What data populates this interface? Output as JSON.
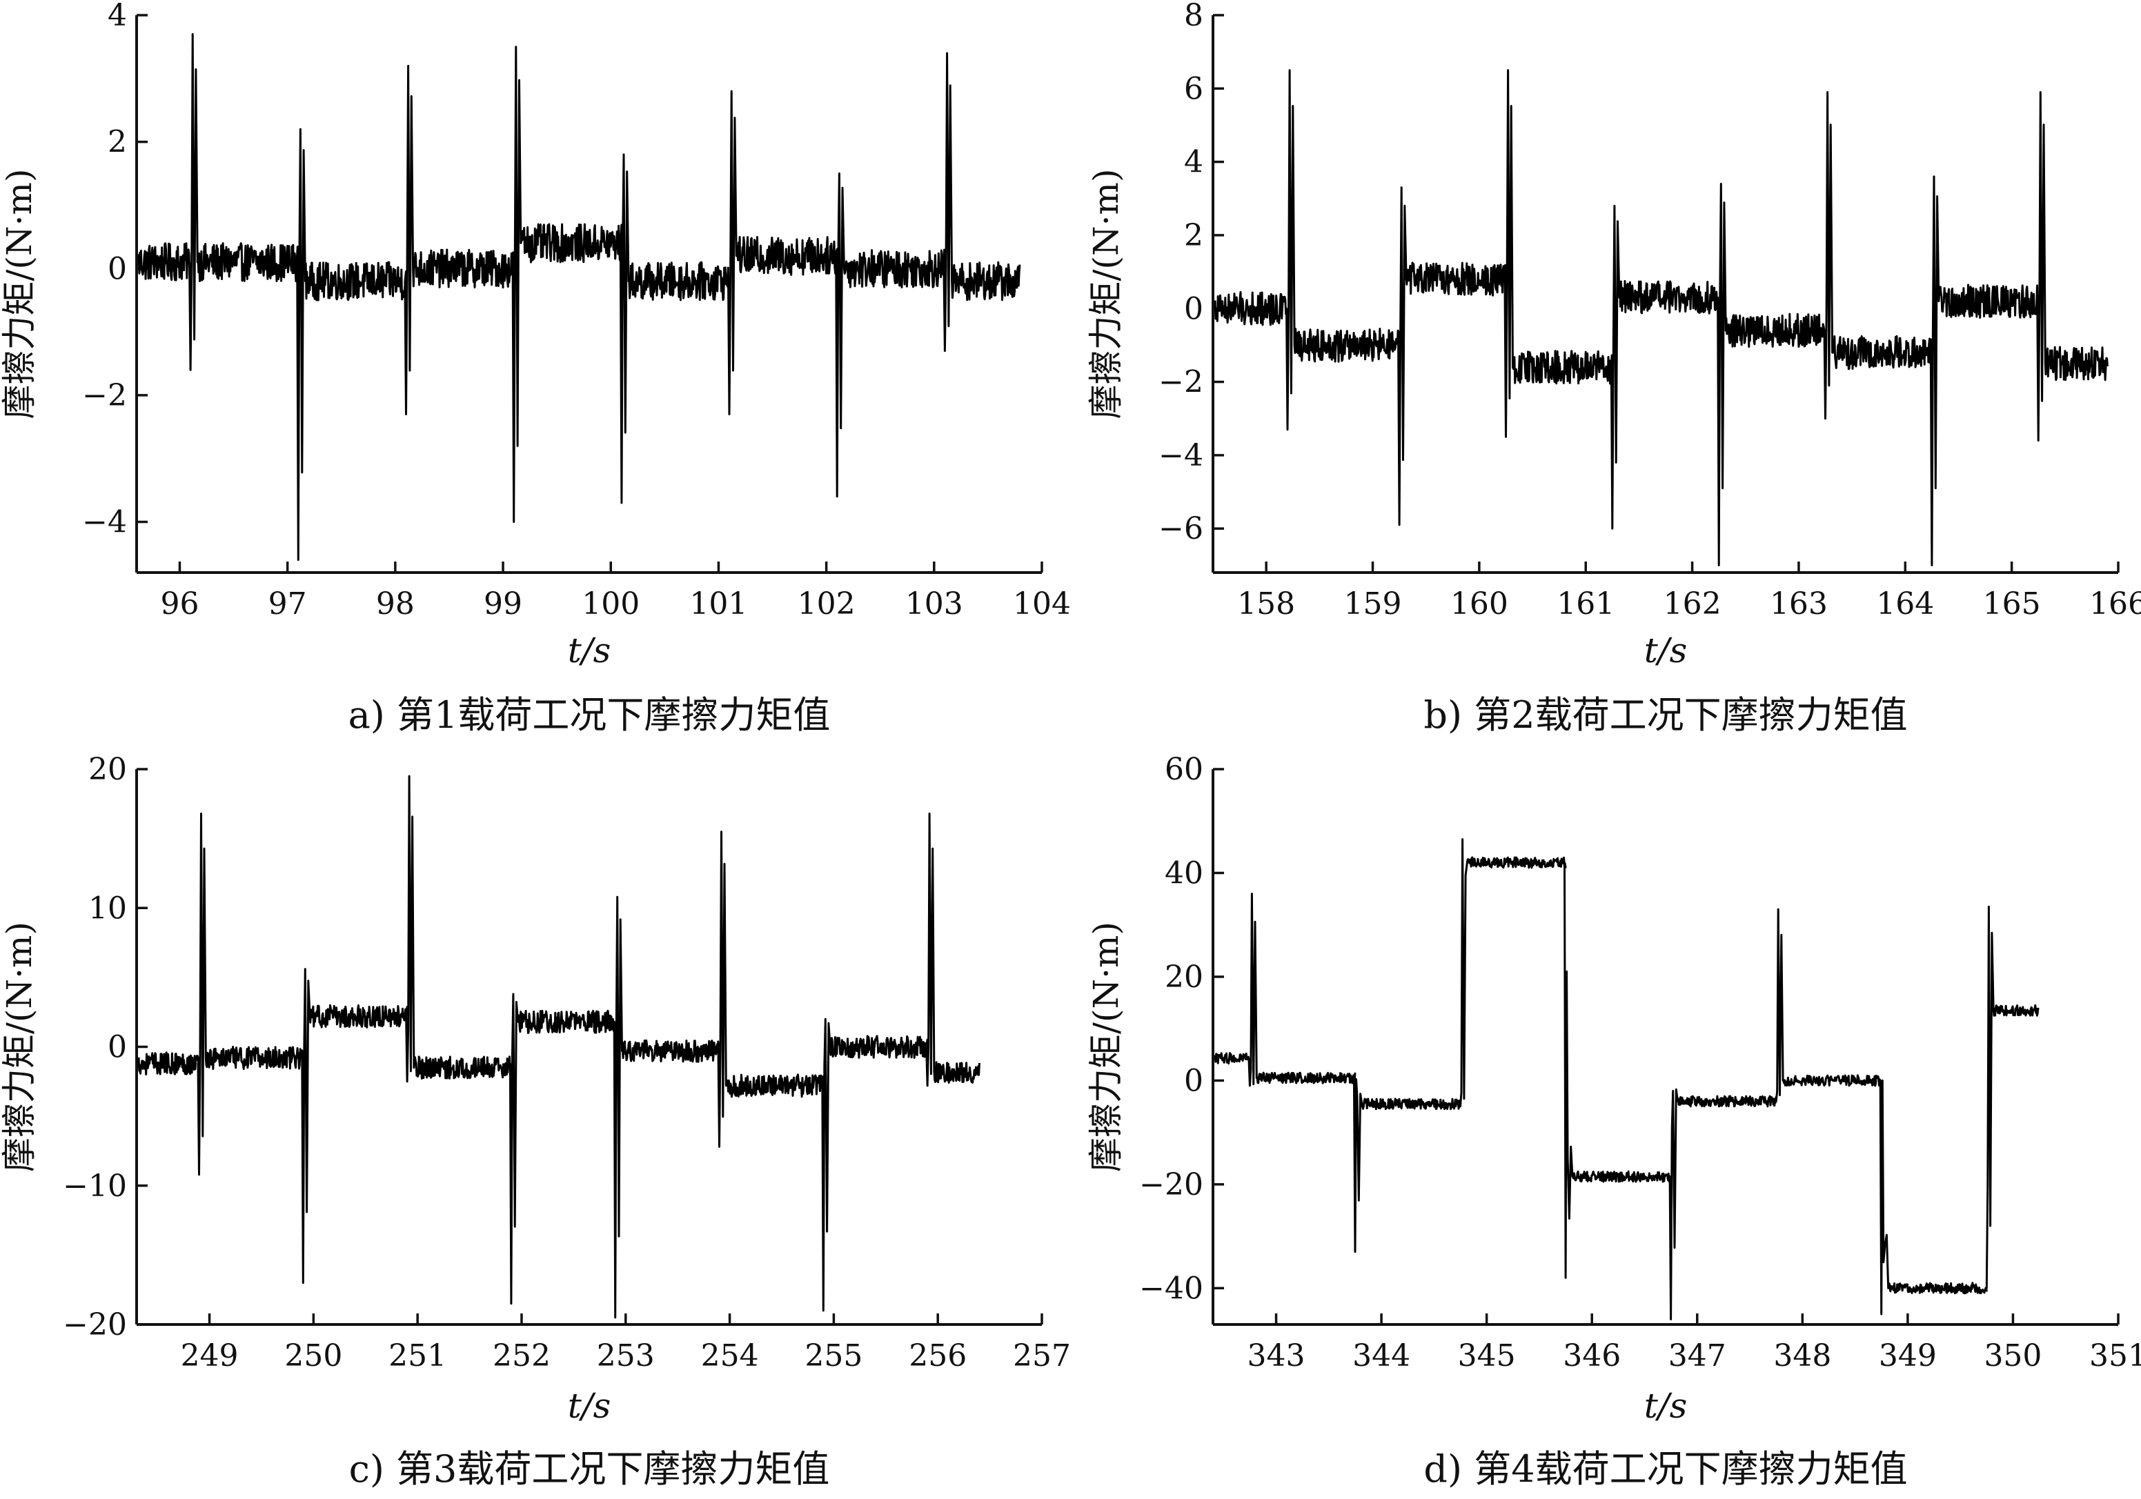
{
  "chart_data": [
    {
      "type": "line",
      "caption": "a) 第1载荷工况下摩擦力矩值",
      "xlabel": "t/s",
      "ylabel": "摩擦力矩/(N·m)",
      "xlim": [
        95.6,
        104
      ],
      "ylim": [
        -4.8,
        4
      ],
      "xticks": [
        96,
        97,
        98,
        99,
        100,
        101,
        102,
        103,
        104
      ],
      "yticks": [
        -4,
        -2,
        0,
        2,
        4
      ],
      "ytick_labels": [
        "−4",
        "−2",
        "0",
        "2",
        "4"
      ],
      "t_end": 103.8,
      "noise": 0.3,
      "events": [
        {
          "t": 96.1,
          "base": 0.1,
          "spike": 3.7,
          "dip": -1.6
        },
        {
          "t": 97.1,
          "base": -0.2,
          "spike": 2.2,
          "dip": -4.6
        },
        {
          "t": 98.1,
          "base": 0.0,
          "spike": 3.2,
          "dip": -2.3
        },
        {
          "t": 99.1,
          "base": 0.4,
          "spike": 3.5,
          "dip": -4.0
        },
        {
          "t": 100.1,
          "base": -0.2,
          "spike": 1.8,
          "dip": -3.7
        },
        {
          "t": 101.1,
          "base": 0.2,
          "spike": 2.8,
          "dip": -2.3
        },
        {
          "t": 102.1,
          "base": 0.0,
          "spike": 1.5,
          "dip": -3.6
        },
        {
          "t": 103.1,
          "base": -0.2,
          "spike": 3.4,
          "dip": -1.3
        }
      ],
      "start_base": 0.1
    },
    {
      "type": "line",
      "caption": "b) 第2载荷工况下摩擦力矩值",
      "xlabel": "t/s",
      "ylabel": "摩擦力矩/(N·m)",
      "xlim": [
        157.5,
        166
      ],
      "ylim": [
        -7.2,
        8
      ],
      "xticks": [
        158,
        159,
        160,
        161,
        162,
        163,
        164,
        165,
        166
      ],
      "yticks": [
        -6,
        -4,
        -2,
        0,
        2,
        4,
        6,
        8
      ],
      "ytick_labels": [
        "−6",
        "−4",
        "−2",
        "0",
        "2",
        "4",
        "6",
        "8"
      ],
      "t_end": 165.9,
      "noise": 0.45,
      "events": [
        {
          "t": 158.2,
          "base": -1.0,
          "spike": 6.5,
          "dip": -3.3
        },
        {
          "t": 159.25,
          "base": 0.8,
          "spike": 3.3,
          "dip": -5.9
        },
        {
          "t": 160.25,
          "base": -1.6,
          "spike": 6.5,
          "dip": -3.5
        },
        {
          "t": 161.25,
          "base": 0.3,
          "spike": 2.8,
          "dip": -6.0
        },
        {
          "t": 162.25,
          "base": -0.6,
          "spike": 3.4,
          "dip": -7.0
        },
        {
          "t": 163.25,
          "base": -1.2,
          "spike": 5.9,
          "dip": -3.0
        },
        {
          "t": 164.25,
          "base": 0.2,
          "spike": 3.6,
          "dip": -7.0
        },
        {
          "t": 165.25,
          "base": -1.5,
          "spike": 5.9,
          "dip": -3.6
        }
      ],
      "start_base": 0.0
    },
    {
      "type": "line",
      "caption": "c) 第3载荷工况下摩擦力矩值",
      "xlabel": "t/s",
      "ylabel": "摩擦力矩/(N·m)",
      "xlim": [
        248.3,
        257
      ],
      "ylim": [
        -20,
        20
      ],
      "xticks": [
        249,
        250,
        251,
        252,
        253,
        254,
        255,
        256,
        257
      ],
      "yticks": [
        -20,
        -10,
        0,
        10,
        20
      ],
      "ytick_labels": [
        "−20",
        "−10",
        "0",
        "10",
        "20"
      ],
      "t_end": 256.4,
      "noise": 0.8,
      "events": [
        {
          "t": 248.9,
          "base": -0.8,
          "spike": 16.8,
          "dip": -9.2
        },
        {
          "t": 249.9,
          "base": 2.2,
          "spike": 5.6,
          "dip": -17.0
        },
        {
          "t": 250.9,
          "base": -1.5,
          "spike": 19.5,
          "dip": -2.5
        },
        {
          "t": 251.9,
          "base": 1.8,
          "spike": 3.8,
          "dip": -18.5
        },
        {
          "t": 252.9,
          "base": -0.3,
          "spike": 10.8,
          "dip": -19.5
        },
        {
          "t": 253.9,
          "base": -2.8,
          "spike": 15.5,
          "dip": -7.2
        },
        {
          "t": 254.9,
          "base": 0.0,
          "spike": 2.0,
          "dip": -19.0
        },
        {
          "t": 255.9,
          "base": -1.8,
          "spike": 16.8,
          "dip": -2.8
        }
      ],
      "start_base": -1.2
    },
    {
      "type": "line",
      "caption": "d) 第4载荷工况下摩擦力矩值",
      "xlabel": "t/s",
      "ylabel": "摩擦力矩/(N·m)",
      "xlim": [
        342.4,
        351
      ],
      "ylim": [
        -47,
        60
      ],
      "xticks": [
        343,
        344,
        345,
        346,
        347,
        348,
        349,
        350,
        351
      ],
      "yticks": [
        -40,
        -20,
        0,
        20,
        40,
        60
      ],
      "ytick_labels": [
        "−40",
        "−20",
        "0",
        "20",
        "40",
        "60"
      ],
      "t_end": 350.25,
      "noise": 1.0,
      "events": [
        {
          "t": 342.75,
          "base": 0.5,
          "spike": 36.0,
          "dip": -1.0
        },
        {
          "t": 343.75,
          "base": -4.5,
          "spike": -3.0,
          "dip": -33.0
        },
        {
          "t": 344.75,
          "base": 42.0,
          "spike": 46.5,
          "dip": -5.0
        },
        {
          "t": 345.75,
          "base": -18.5,
          "spike": -15.0,
          "dip": -38.0
        },
        {
          "t": 346.75,
          "base": -4.0,
          "spike": -2.0,
          "dip": -46.0
        },
        {
          "t": 347.75,
          "base": 0.0,
          "spike": 33.0,
          "dip": -4.0
        },
        {
          "t": 348.75,
          "base": -40.0,
          "spike": -35.0,
          "dip": -45.0
        },
        {
          "t": 349.75,
          "base": 13.5,
          "spike": 33.5,
          "dip": -40.0
        }
      ],
      "start_base": 4.3
    }
  ]
}
